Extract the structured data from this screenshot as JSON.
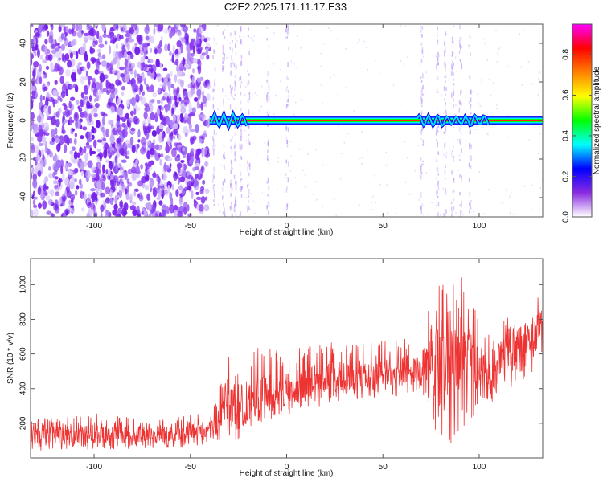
{
  "title": "C2E2.2025.171.11.17.E33",
  "chart_data": [
    {
      "type": "heatmap",
      "xlabel": "Height of straight line (km)",
      "ylabel": "Frequency (Hz)",
      "xlim": [
        -133,
        133
      ],
      "ylim": [
        -50,
        50
      ],
      "xticks": [
        -100,
        -50,
        0,
        50,
        100
      ],
      "yticks": [
        -40,
        -20,
        0,
        20,
        40
      ],
      "description_features": {
        "noise_region_x": [
          -133,
          -40
        ],
        "signal_line_frequency": 0,
        "signal_start_x": -40
      },
      "colorbar": {
        "label": "Normalized spectral amplitude",
        "ticks": [
          0.0,
          0.2,
          0.4,
          0.6,
          0.8
        ],
        "range": [
          0.0,
          0.95
        ],
        "colors": [
          "#ffffff",
          "#8a2be2",
          "#0000ff",
          "#00ffff",
          "#00ff00",
          "#ffff00",
          "#ff8000",
          "#ff0000",
          "#ff00ff"
        ]
      }
    },
    {
      "type": "line",
      "xlabel": "Height of straight line (km)",
      "ylabel": "SNR (10 * v/v)",
      "xlim": [
        -133,
        133
      ],
      "ylim": [
        0,
        1150
      ],
      "xticks": [
        -100,
        -50,
        0,
        50,
        100
      ],
      "yticks": [
        200,
        400,
        600,
        800,
        1000
      ],
      "color": "#ee3333",
      "series": [
        {
          "x": [
            -133,
            -120,
            -100,
            -80,
            -60,
            -40,
            -35,
            -32,
            -30,
            -25,
            -20,
            -10,
            0,
            10,
            20,
            30,
            40,
            50,
            60,
            70,
            75,
            80,
            85,
            90,
            95,
            100,
            105,
            110,
            120,
            130,
            133
          ],
          "y": [
            120,
            130,
            135,
            130,
            140,
            160,
            220,
            380,
            300,
            250,
            330,
            370,
            400,
            420,
            450,
            470,
            480,
            490,
            500,
            520,
            560,
            600,
            620,
            640,
            580,
            500,
            470,
            560,
            640,
            740,
            780
          ],
          "envelope_low": [
            40,
            40,
            45,
            50,
            55,
            60,
            80,
            120,
            90,
            100,
            180,
            200,
            240,
            270,
            300,
            320,
            340,
            350,
            350,
            360,
            200,
            100,
            40,
            100,
            200,
            300,
            300,
            350,
            420,
            520,
            560
          ],
          "envelope_high": [
            220,
            240,
            260,
            250,
            240,
            260,
            380,
            620,
            600,
            500,
            620,
            650,
            640,
            640,
            680,
            700,
            680,
            690,
            700,
            720,
            900,
            1120,
            1150,
            1100,
            950,
            800,
            720,
            780,
            840,
            920,
            960
          ]
        }
      ]
    }
  ]
}
